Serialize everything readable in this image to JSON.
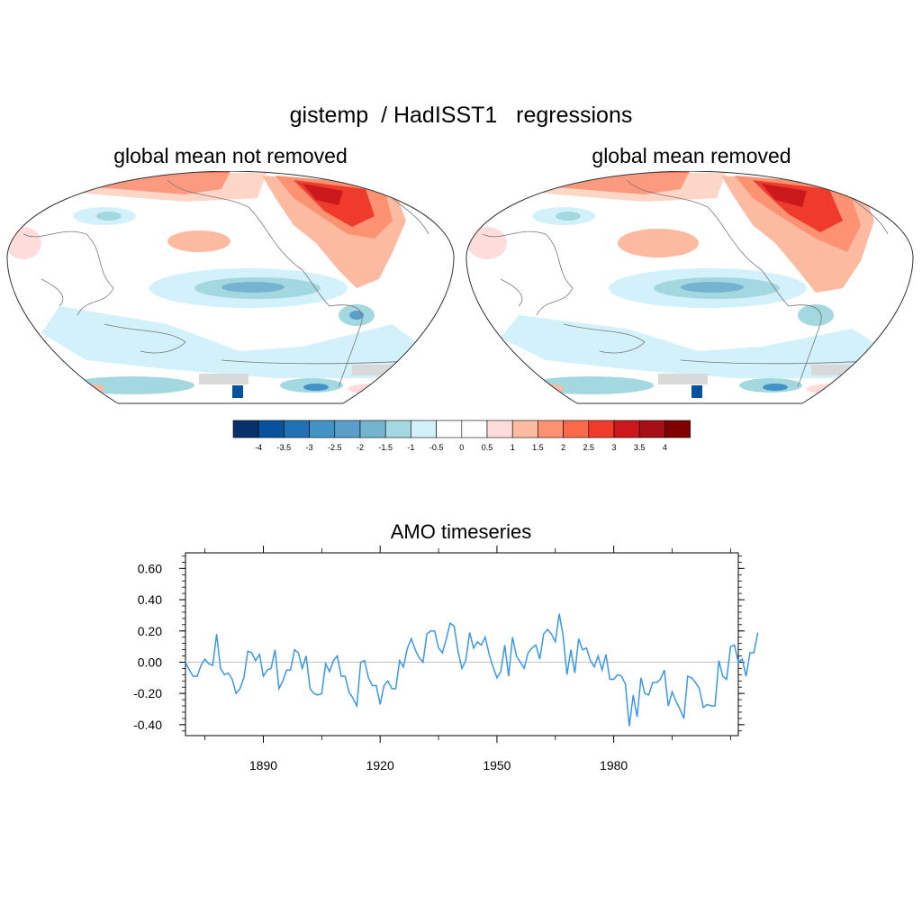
{
  "main_title": "gistemp  / HadISST1   regressions",
  "maps": [
    {
      "title": "global mean not removed"
    },
    {
      "title": "global mean removed"
    }
  ],
  "colors": {
    "palette": [
      "#08306b",
      "#08519c",
      "#2171b5",
      "#4292c6",
      "#5a9ec9",
      "#74b4cf",
      "#a3d8e0",
      "#d2f1fa",
      "#ffffff",
      "#ffffff",
      "#ffdcdc",
      "#fcbba1",
      "#fc9272",
      "#fb6a4a",
      "#ef3b2c",
      "#cb181d",
      "#a50f15",
      "#7f0000"
    ],
    "line": "#3a98e8",
    "land": "#ffffff",
    "missing": "#d9d9d9"
  },
  "chart_data": [
    {
      "type": "heatmap",
      "title": "global mean not removed",
      "colorbar": {
        "levels": [
          -4,
          -3.5,
          -3,
          -2.5,
          -2,
          -1.5,
          -1,
          -0.5,
          0,
          0.5,
          1,
          1.5,
          2,
          2.5,
          3,
          3.5,
          4
        ],
        "tick_labels": [
          "-4",
          "-3.5",
          "-3",
          "-2.5",
          "-2",
          "-1.5",
          "-1",
          "-0.5",
          "0",
          "0.5",
          "1",
          "1.5",
          "2",
          "2.5",
          "3",
          "3.5",
          "4"
        ]
      }
    },
    {
      "type": "heatmap",
      "title": "global mean removed"
    },
    {
      "type": "line",
      "title": "AMO timeseries",
      "xlabel": "",
      "ylabel": "",
      "xlim": [
        1870,
        2012
      ],
      "ylim": [
        -0.47,
        0.7
      ],
      "x_ticks": [
        1890,
        1920,
        1950,
        1980
      ],
      "y_ticks": [
        -0.4,
        -0.2,
        0.0,
        0.2,
        0.4,
        0.6
      ],
      "y_tick_labels": [
        "-0.40",
        "-0.20",
        "0.00",
        "0.20",
        "0.40",
        "0.60"
      ],
      "x_tick_labels": [
        "1890",
        "1920",
        "1950",
        "1980"
      ],
      "reference_line": 0.0,
      "series": [
        {
          "name": "AMO",
          "x_start": 1870,
          "values": [
            0.0,
            -0.05,
            -0.09,
            -0.09,
            -0.02,
            0.02,
            -0.01,
            -0.02,
            0.18,
            -0.04,
            -0.08,
            -0.07,
            -0.11,
            -0.2,
            -0.17,
            -0.1,
            0.07,
            0.06,
            0.01,
            0.05,
            -0.09,
            -0.05,
            -0.04,
            0.08,
            -0.17,
            -0.12,
            -0.05,
            -0.05,
            0.08,
            0.06,
            -0.04,
            0.04,
            -0.17,
            -0.2,
            -0.21,
            -0.2,
            -0.01,
            -0.06,
            0.01,
            0.04,
            -0.09,
            -0.09,
            -0.19,
            -0.23,
            -0.28,
            0.0,
            0.01,
            -0.1,
            -0.15,
            -0.15,
            -0.27,
            -0.15,
            -0.12,
            -0.17,
            -0.17,
            0.01,
            -0.03,
            0.09,
            0.15,
            0.08,
            0.03,
            0.0,
            0.18,
            0.2,
            0.2,
            0.09,
            0.06,
            0.15,
            0.25,
            0.23,
            0.07,
            -0.04,
            0.01,
            0.19,
            0.09,
            0.13,
            0.11,
            0.16,
            0.05,
            -0.03,
            -0.1,
            -0.06,
            0.11,
            -0.09,
            0.16,
            0.04,
            0.0,
            -0.04,
            0.06,
            0.09,
            0.11,
            0.02,
            0.18,
            0.21,
            0.18,
            0.13,
            0.31,
            0.17,
            -0.08,
            0.08,
            -0.07,
            0.15,
            0.08,
            0.09,
            0.01,
            -0.03,
            0.04,
            -0.05,
            0.05,
            -0.11,
            -0.11,
            -0.08,
            -0.09,
            -0.14,
            -0.41,
            -0.21,
            -0.35,
            -0.1,
            -0.2,
            -0.21,
            -0.13,
            -0.13,
            -0.11,
            -0.05,
            -0.28,
            -0.19,
            -0.25,
            -0.3,
            -0.36,
            -0.09,
            -0.1,
            -0.13,
            -0.17,
            -0.29,
            -0.27,
            -0.28,
            -0.28,
            0.01,
            -0.09,
            -0.11,
            0.1,
            0.11,
            0.0,
            0.02,
            -0.09,
            0.06,
            0.06,
            0.19
          ]
        }
      ]
    }
  ]
}
